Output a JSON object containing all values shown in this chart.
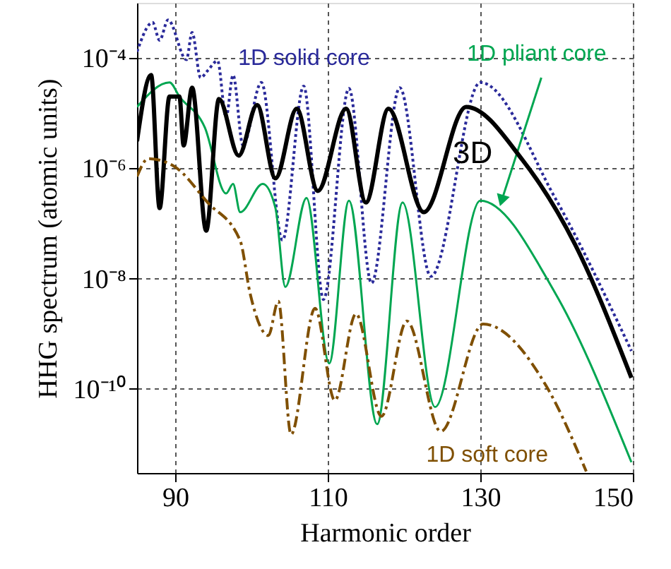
{
  "chart_data": {
    "type": "line",
    "xlabel": "Harmonic order",
    "ylabel": "HHG spectrum (atomic units)",
    "xlim": [
      85,
      150
    ],
    "xticks": [
      90,
      110,
      130,
      150
    ],
    "ylim": [
      3e-12,
      0.001
    ],
    "log": true,
    "yticks": [
      {
        "value": 1e-10,
        "label": "10⁻¹⁰"
      },
      {
        "value": 1e-08,
        "label": "10⁻⁸"
      },
      {
        "value": 1e-06,
        "label": "10⁻⁶"
      },
      {
        "value": 0.0001,
        "label": "10⁻⁴"
      }
    ],
    "grid": true,
    "legend": false,
    "series": [
      {
        "name": "1D solid core",
        "color": "#2a2a9a",
        "line_style": "dotted",
        "x": [
          85.0,
          87.04,
          87.96,
          89.07,
          91.48,
          92.22,
          93.33,
          94.26,
          95.56,
          96.67,
          97.59,
          98.89,
          101.3,
          104.07,
          106.85,
          109.44,
          112.78,
          115.74,
          119.44,
          123.52,
          130.0,
          139.81,
          149.81
        ],
        "values": [
          0.00013,
          0.00044,
          0.00021,
          0.00049,
          9.3e-05,
          0.00029,
          4.4e-05,
          5.9e-05,
          8.9e-05,
          8.3e-06,
          4.9e-05,
          2.6e-06,
          3.6e-05,
          5e-08,
          3.1e-05,
          4.2e-09,
          2.8e-05,
          8.3e-09,
          2.9e-05,
          1.1e-08,
          3.6e-05,
          2.9e-07,
          4.9e-10
        ]
      },
      {
        "name": "1D pliant core",
        "color": "#00a651",
        "line_style": "solid",
        "x": [
          85.0,
          89.26,
          90.56,
          93.89,
          96.67,
          97.59,
          98.52,
          101.48,
          103.15,
          104.44,
          107.22,
          110.19,
          112.78,
          116.48,
          119.81,
          124.07,
          130.0,
          139.81,
          149.81
        ],
        "values": [
          1.3e-05,
          3.6e-05,
          2e-05,
          5.5e-06,
          3.5e-07,
          5.2e-07,
          1.6e-07,
          5.2e-07,
          1.9e-07,
          7.1e-09,
          2.9e-07,
          2.9e-10,
          2.6e-07,
          2.3e-11,
          2.4e-07,
          4.7e-11,
          2.6e-07,
          5.5e-09,
          4.7e-12
        ]
      },
      {
        "name": "3D",
        "color": "#000000",
        "line_style": "solid",
        "x": [
          85.0,
          86.85,
          87.96,
          89.26,
          90.56,
          91.11,
          92.22,
          94.07,
          95.74,
          98.33,
          100.74,
          103.15,
          105.93,
          108.7,
          112.41,
          115.0,
          117.96,
          122.59,
          128.15,
          135.56,
          142.41,
          149.81
        ],
        "values": [
          3.1e-06,
          4.9e-05,
          1.9e-07,
          2e-05,
          2e-05,
          2.6e-06,
          2.9e-05,
          7.4e-08,
          1.8e-05,
          1.7e-06,
          1.4e-05,
          6.6e-07,
          1.2e-05,
          3.9e-07,
          1.2e-05,
          2.4e-07,
          1.2e-05,
          1.6e-07,
          1.3e-05,
          1.4e-06,
          4.2e-08,
          1.6e-10
        ]
      },
      {
        "name": "1D soft core",
        "color": "#7f4f00",
        "line_style": "dashed",
        "x": [
          85.0,
          86.48,
          89.81,
          94.26,
          98.52,
          99.81,
          102.22,
          103.52,
          105.19,
          108.33,
          110.93,
          113.7,
          117.04,
          120.37,
          124.81,
          130.37,
          138.7,
          143.89
        ],
        "values": [
          7.1e-07,
          1.5e-06,
          1.1e-06,
          2.4e-07,
          4.9e-08,
          5.5e-09,
          9.3e-10,
          3.9e-09,
          1.5e-11,
          2.9e-09,
          6.2e-11,
          2.3e-09,
          3.2e-11,
          1.7e-09,
          1.7e-11,
          1.5e-09,
          1.1e-10,
          3.2e-12
        ]
      }
    ]
  }
}
